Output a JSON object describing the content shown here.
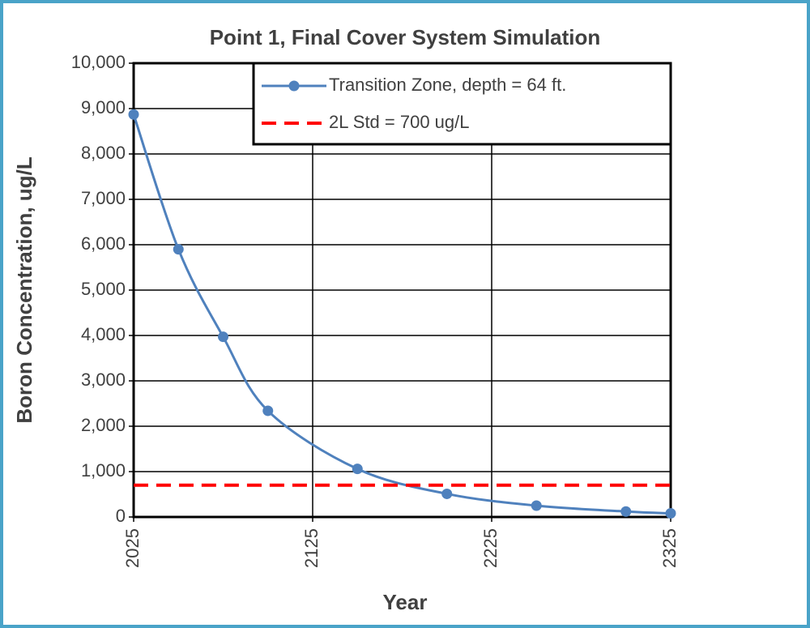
{
  "chart_data": {
    "type": "line",
    "title": "Point 1, Final Cover System Simulation",
    "x_label": "Year",
    "y_label": "Boron Concentration, ug/L",
    "series": [
      {
        "name": "Transition Zone, depth = 64 ft.",
        "color": "#4f81bd",
        "marker": true,
        "dash": false,
        "x": [
          2025,
          2050,
          2075,
          2100,
          2150,
          2200,
          2250,
          2300,
          2325
        ],
        "values": [
          8870,
          5900,
          3970,
          2340,
          1060,
          510,
          250,
          120,
          80
        ]
      },
      {
        "name": "2L Std = 700 ug/L",
        "color": "#ff0000",
        "marker": false,
        "dash": true,
        "x": [
          2025,
          2325
        ],
        "values": [
          700,
          700
        ]
      }
    ],
    "xlim": [
      2025,
      2325
    ],
    "xticks": [
      2025,
      2125,
      2225,
      2325
    ],
    "ylim": [
      0,
      10000
    ],
    "yticks": [
      0,
      {
        "value": 1000,
        "label": "1,000"
      },
      {
        "value": 2000,
        "label": "2,000"
      },
      {
        "value": 3000,
        "label": "3,000"
      },
      {
        "value": 4000,
        "label": "4,000"
      },
      {
        "value": 5000,
        "label": "5,000"
      },
      {
        "value": 6000,
        "label": "6,000"
      },
      {
        "value": 7000,
        "label": "7,000"
      },
      {
        "value": 8000,
        "label": "8,000"
      },
      {
        "value": 9000,
        "label": "9,000"
      },
      {
        "value": 10000,
        "label": "10,000"
      }
    ],
    "grid": true,
    "legend": "upper right"
  }
}
